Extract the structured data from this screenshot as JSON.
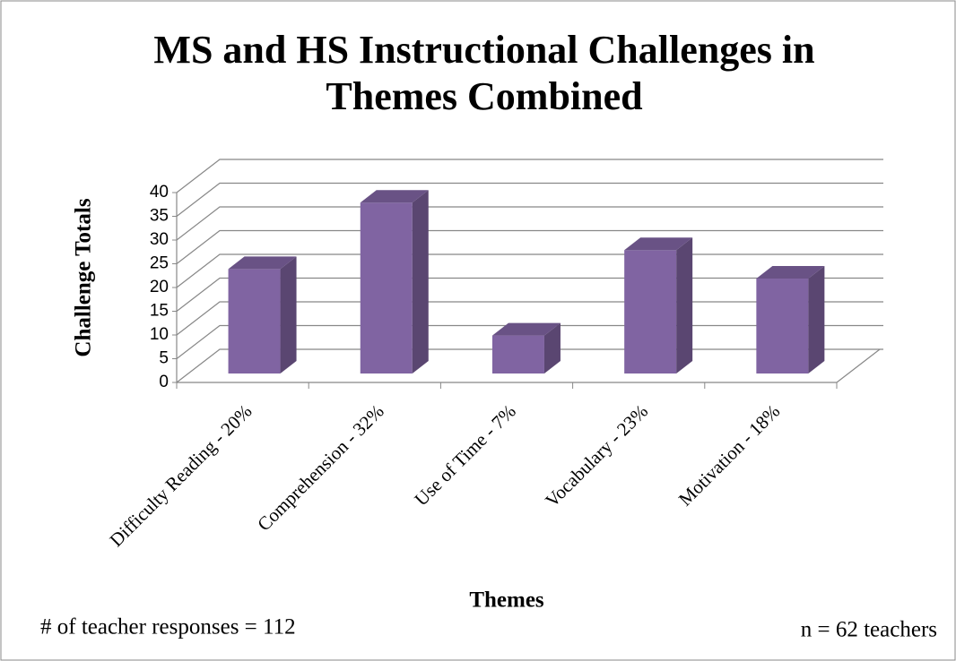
{
  "chart_data": {
    "type": "bar3d",
    "title": [
      "MS and HS Instructional Challenges in",
      "Themes Combined"
    ],
    "y_label": "Challenge Totals",
    "x_label": "Themes",
    "categories": [
      "Difficulty Reading - 20%",
      "Comprehension - 32%",
      "Use of Time - 7%",
      "Vocabulary - 23%",
      "Motivation - 18%"
    ],
    "values": [
      22,
      36,
      8,
      26,
      20
    ],
    "color": "#8064a2",
    "ylim": [
      0,
      40
    ],
    "yticks": [
      0,
      5,
      10,
      15,
      20,
      25,
      30,
      35,
      40
    ],
    "grid": true,
    "annotations": [
      "# of teacher responses = 112",
      "n = 62 teachers"
    ]
  }
}
